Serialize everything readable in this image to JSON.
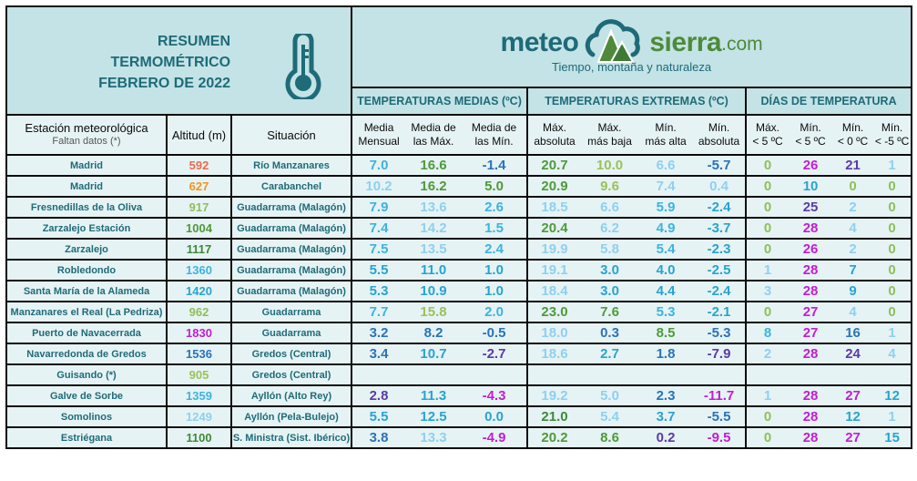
{
  "header": {
    "title_lines": [
      "RESUMEN",
      "TERMOMÉTRICO",
      "FEBRERO DE 2022"
    ],
    "thermometer_icon": "thermometer-icon",
    "logo": {
      "meteo": "meteo",
      "sierra": "sierra",
      "domain": ".com",
      "tagline": "Tiempo, montaña y naturaleza",
      "icon": "cloud-mountain-icon"
    }
  },
  "groups": {
    "medias": "TEMPERATURAS MEDIAS (ºC)",
    "extremas": "TEMPERATURAS EXTREMAS (ºC)",
    "dias": "DÍAS DE TEMPERATURA"
  },
  "columns": {
    "station": "Estación meteorológica",
    "station_note": "Faltan datos (*)",
    "altitude": "Altitud (m)",
    "situation": "Situación",
    "media_mensual": [
      "Media",
      "Mensual"
    ],
    "media_max": [
      "Media de",
      "las Máx."
    ],
    "media_min": [
      "Media de",
      "las Mín."
    ],
    "max_abs": [
      "Máx.",
      "absoluta"
    ],
    "max_baja": [
      "Máx.",
      "más baja"
    ],
    "min_alta": [
      "Mín.",
      "más alta"
    ],
    "min_abs": [
      "Mín.",
      "absoluta"
    ],
    "d_max5": [
      "Máx.",
      "< 5 ºC"
    ],
    "d_min5": [
      "Mín.",
      "< 5 ºC"
    ],
    "d_min0": [
      "Mín.",
      "< 0 ºC"
    ],
    "d_minm5": [
      "Mín.",
      "< -5 ºC"
    ]
  },
  "colors": {
    "header_bg": "#c3e3e6",
    "cell_bg": "#e6f3f4",
    "text_teal": "#1f6b78",
    "c_lightblue": "#8fd0ef",
    "c_sky": "#3db3e0",
    "c_mid": "#29a3cf",
    "c_blue": "#2a73b8",
    "c_purple": "#5b3aa8",
    "c_magenta": "#c21dd4",
    "c_lightgreen": "#8fbf5a",
    "c_green": "#4f9a3a",
    "c_darkgreen": "#3d8a3a",
    "c_orange": "#f0961e",
    "c_red": "#ec6a4a",
    "c_yellowgreen": "#9bc15a"
  },
  "rows": [
    {
      "station": "Madrid",
      "alt": "592",
      "alt_c": "c_red",
      "sit": "Río Manzanares",
      "v": [
        [
          "7.0",
          "c_sky"
        ],
        [
          "16.6",
          "c_green"
        ],
        [
          "-1.4",
          "c_blue"
        ],
        [
          "20.7",
          "c_green"
        ],
        [
          "10.0",
          "c_yellowgreen"
        ],
        [
          "6.6",
          "c_lightblue"
        ],
        [
          "-5.7",
          "c_blue"
        ],
        [
          "0",
          "c_lightgreen"
        ],
        [
          "26",
          "c_magenta"
        ],
        [
          "21",
          "c_purple"
        ],
        [
          "1",
          "c_lightblue"
        ]
      ]
    },
    {
      "station": "Madrid",
      "alt": "627",
      "alt_c": "c_orange",
      "sit": "Carabanchel",
      "v": [
        [
          "10.2",
          "c_lightblue"
        ],
        [
          "16.2",
          "c_green"
        ],
        [
          "5.0",
          "c_green"
        ],
        [
          "20.9",
          "c_green"
        ],
        [
          "9.6",
          "c_yellowgreen"
        ],
        [
          "7.4",
          "c_lightblue"
        ],
        [
          "0.4",
          "c_lightblue"
        ],
        [
          "0",
          "c_lightgreen"
        ],
        [
          "10",
          "c_mid"
        ],
        [
          "0",
          "c_lightgreen"
        ],
        [
          "0",
          "c_lightgreen"
        ]
      ]
    },
    {
      "station": "Fresnedillas de la Oliva",
      "alt": "917",
      "alt_c": "c_lightgreen",
      "sit": "Guadarrama (Malagón)",
      "v": [
        [
          "7.9",
          "c_sky"
        ],
        [
          "13.6",
          "c_lightblue"
        ],
        [
          "2.6",
          "c_sky"
        ],
        [
          "18.5",
          "c_lightblue"
        ],
        [
          "6.6",
          "c_lightblue"
        ],
        [
          "5.9",
          "c_sky"
        ],
        [
          "-2.4",
          "c_mid"
        ],
        [
          "0",
          "c_lightgreen"
        ],
        [
          "25",
          "c_purple"
        ],
        [
          "2",
          "c_lightblue"
        ],
        [
          "0",
          "c_lightgreen"
        ]
      ]
    },
    {
      "station": "Zarzalejo Estación",
      "alt": "1004",
      "alt_c": "c_green",
      "sit": "Guadarrama (Malagón)",
      "v": [
        [
          "7.4",
          "c_sky"
        ],
        [
          "14.2",
          "c_lightblue"
        ],
        [
          "1.5",
          "c_sky"
        ],
        [
          "20.4",
          "c_green"
        ],
        [
          "6.2",
          "c_lightblue"
        ],
        [
          "4.9",
          "c_sky"
        ],
        [
          "-3.7",
          "c_mid"
        ],
        [
          "0",
          "c_lightgreen"
        ],
        [
          "28",
          "c_magenta"
        ],
        [
          "4",
          "c_lightblue"
        ],
        [
          "0",
          "c_lightgreen"
        ]
      ]
    },
    {
      "station": "Zarzalejo",
      "alt": "1117",
      "alt_c": "c_darkgreen",
      "sit": "Guadarrama (Malagón)",
      "v": [
        [
          "7.5",
          "c_sky"
        ],
        [
          "13.5",
          "c_lightblue"
        ],
        [
          "2.4",
          "c_sky"
        ],
        [
          "19.9",
          "c_lightblue"
        ],
        [
          "5.8",
          "c_lightblue"
        ],
        [
          "5.4",
          "c_sky"
        ],
        [
          "-2.3",
          "c_mid"
        ],
        [
          "0",
          "c_lightgreen"
        ],
        [
          "26",
          "c_magenta"
        ],
        [
          "2",
          "c_lightblue"
        ],
        [
          "0",
          "c_lightgreen"
        ]
      ]
    },
    {
      "station": "Robledondo",
      "alt": "1360",
      "alt_c": "c_sky",
      "sit": "Guadarrama (Malagón)",
      "v": [
        [
          "5.5",
          "c_mid"
        ],
        [
          "11.0",
          "c_mid"
        ],
        [
          "1.0",
          "c_mid"
        ],
        [
          "19.1",
          "c_lightblue"
        ],
        [
          "3.0",
          "c_mid"
        ],
        [
          "4.0",
          "c_mid"
        ],
        [
          "-2.5",
          "c_mid"
        ],
        [
          "1",
          "c_lightblue"
        ],
        [
          "28",
          "c_magenta"
        ],
        [
          "7",
          "c_mid"
        ],
        [
          "0",
          "c_lightgreen"
        ]
      ]
    },
    {
      "station": "Santa María de la Alameda",
      "alt": "1420",
      "alt_c": "c_mid",
      "sit": "Guadarrama (Malagón)",
      "v": [
        [
          "5.3",
          "c_mid"
        ],
        [
          "10.9",
          "c_mid"
        ],
        [
          "1.0",
          "c_mid"
        ],
        [
          "18.4",
          "c_lightblue"
        ],
        [
          "3.0",
          "c_mid"
        ],
        [
          "4.4",
          "c_mid"
        ],
        [
          "-2.4",
          "c_mid"
        ],
        [
          "3",
          "c_lightblue"
        ],
        [
          "28",
          "c_magenta"
        ],
        [
          "9",
          "c_mid"
        ],
        [
          "0",
          "c_lightgreen"
        ]
      ]
    },
    {
      "station": "Manzanares el Real (La Pedriza)",
      "alt": "962",
      "alt_c": "c_lightgreen",
      "sit": "Guadarrama",
      "v": [
        [
          "7.7",
          "c_sky"
        ],
        [
          "15.8",
          "c_yellowgreen"
        ],
        [
          "2.0",
          "c_sky"
        ],
        [
          "23.0",
          "c_green"
        ],
        [
          "7.6",
          "c_green"
        ],
        [
          "5.3",
          "c_sky"
        ],
        [
          "-2.1",
          "c_mid"
        ],
        [
          "0",
          "c_lightgreen"
        ],
        [
          "27",
          "c_magenta"
        ],
        [
          "4",
          "c_lightblue"
        ],
        [
          "0",
          "c_lightgreen"
        ]
      ]
    },
    {
      "station": "Puerto de Navacerrada",
      "alt": "1830",
      "alt_c": "c_magenta",
      "sit": "Guadarrama",
      "v": [
        [
          "3.2",
          "c_blue"
        ],
        [
          "8.2",
          "c_blue"
        ],
        [
          "-0.5",
          "c_blue"
        ],
        [
          "18.0",
          "c_lightblue"
        ],
        [
          "0.3",
          "c_blue"
        ],
        [
          "8.5",
          "c_green"
        ],
        [
          "-5.3",
          "c_blue"
        ],
        [
          "8",
          "c_sky"
        ],
        [
          "27",
          "c_magenta"
        ],
        [
          "16",
          "c_blue"
        ],
        [
          "1",
          "c_lightblue"
        ]
      ]
    },
    {
      "station": "Navarredonda de Gredos",
      "alt": "1536",
      "alt_c": "c_blue",
      "sit": "Gredos (Central)",
      "v": [
        [
          "3.4",
          "c_blue"
        ],
        [
          "10.7",
          "c_mid"
        ],
        [
          "-2.7",
          "c_purple"
        ],
        [
          "18.6",
          "c_lightblue"
        ],
        [
          "2.7",
          "c_mid"
        ],
        [
          "1.8",
          "c_blue"
        ],
        [
          "-7.9",
          "c_purple"
        ],
        [
          "2",
          "c_lightblue"
        ],
        [
          "28",
          "c_magenta"
        ],
        [
          "24",
          "c_purple"
        ],
        [
          "4",
          "c_lightblue"
        ]
      ]
    },
    {
      "station": "Guisando (*)",
      "alt": "905",
      "alt_c": "c_yellowgreen",
      "sit": "Gredos (Central)",
      "v": [
        [
          "",
          ""
        ],
        [
          "",
          ""
        ],
        [
          "",
          ""
        ],
        [
          "",
          ""
        ],
        [
          "",
          ""
        ],
        [
          "",
          ""
        ],
        [
          "",
          ""
        ],
        [
          "",
          ""
        ],
        [
          "",
          ""
        ],
        [
          "",
          ""
        ],
        [
          "",
          ""
        ]
      ]
    },
    {
      "station": "Galve de Sorbe",
      "alt": "1359",
      "alt_c": "c_sky",
      "sit": "Ayllón (Alto Rey)",
      "v": [
        [
          "2.8",
          "c_purple"
        ],
        [
          "11.3",
          "c_mid"
        ],
        [
          "-4.3",
          "c_magenta"
        ],
        [
          "19.2",
          "c_lightblue"
        ],
        [
          "5.0",
          "c_lightblue"
        ],
        [
          "2.3",
          "c_blue"
        ],
        [
          "-11.7",
          "c_magenta"
        ],
        [
          "1",
          "c_lightblue"
        ],
        [
          "28",
          "c_magenta"
        ],
        [
          "27",
          "c_magenta"
        ],
        [
          "12",
          "c_mid"
        ]
      ]
    },
    {
      "station": "Somolinos",
      "alt": "1249",
      "alt_c": "c_lightblue",
      "sit": "Ayllón (Pela-Bulejo)",
      "v": [
        [
          "5.5",
          "c_mid"
        ],
        [
          "12.5",
          "c_mid"
        ],
        [
          "0.0",
          "c_mid"
        ],
        [
          "21.0",
          "c_darkgreen"
        ],
        [
          "5.4",
          "c_lightblue"
        ],
        [
          "3.7",
          "c_mid"
        ],
        [
          "-5.5",
          "c_blue"
        ],
        [
          "0",
          "c_lightgreen"
        ],
        [
          "28",
          "c_magenta"
        ],
        [
          "12",
          "c_mid"
        ],
        [
          "1",
          "c_lightblue"
        ]
      ]
    },
    {
      "station": "Estriégana",
      "alt": "1100",
      "alt_c": "c_darkgreen",
      "sit": "S. Ministra (Sist. Ibérico)",
      "v": [
        [
          "3.8",
          "c_blue"
        ],
        [
          "13.3",
          "c_lightblue"
        ],
        [
          "-4.9",
          "c_magenta"
        ],
        [
          "20.2",
          "c_green"
        ],
        [
          "8.6",
          "c_green"
        ],
        [
          "0.2",
          "c_purple"
        ],
        [
          "-9.5",
          "c_magenta"
        ],
        [
          "0",
          "c_lightgreen"
        ],
        [
          "28",
          "c_magenta"
        ],
        [
          "27",
          "c_magenta"
        ],
        [
          "15",
          "c_mid"
        ]
      ]
    }
  ]
}
